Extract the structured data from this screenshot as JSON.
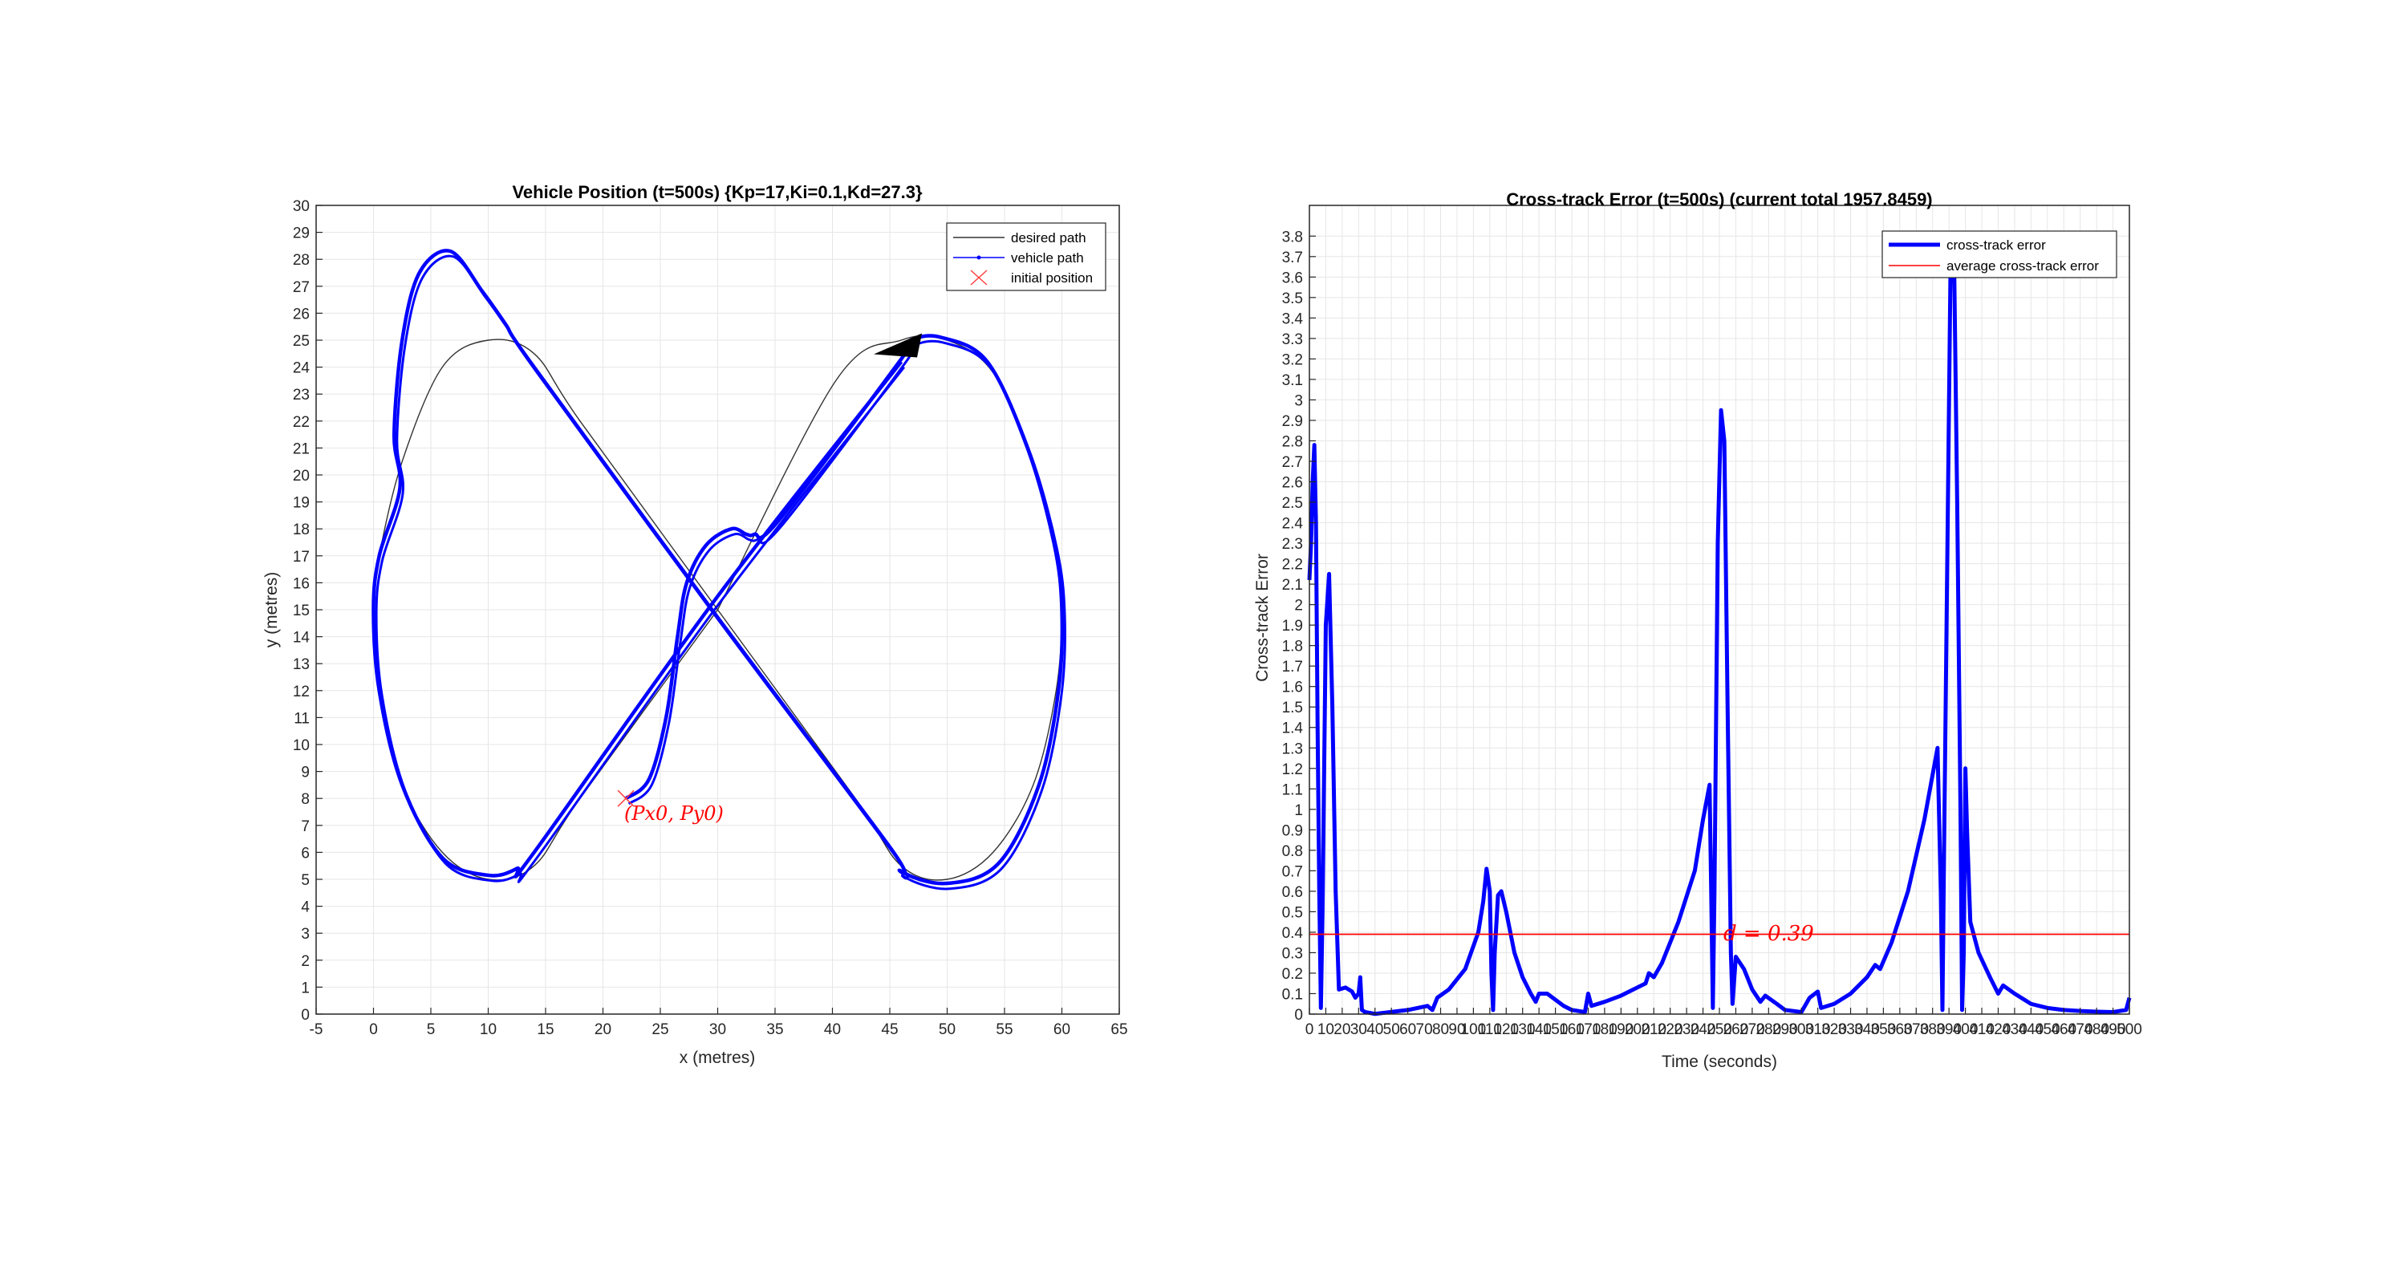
{
  "charts": [
    {
      "type": "line",
      "title": "Vehicle Position (t=500s) {Kp=17,Ki=0.1,Kd=27.3}",
      "xlabel": "x (metres)",
      "ylabel": "y (metres)",
      "xlim": [
        -5,
        65
      ],
      "ylim": [
        0,
        30
      ],
      "xticks": [
        -5,
        0,
        5,
        10,
        15,
        20,
        25,
        30,
        35,
        40,
        45,
        50,
        55,
        60,
        65
      ],
      "yticks": [
        0,
        1,
        2,
        3,
        4,
        5,
        6,
        7,
        8,
        9,
        10,
        11,
        12,
        13,
        14,
        15,
        16,
        17,
        18,
        19,
        20,
        21,
        22,
        23,
        24,
        25,
        26,
        27,
        28,
        29,
        30
      ],
      "grid": true,
      "legend": {
        "location": "top-right",
        "entries": [
          "desired path",
          "vehicle path",
          "initial position"
        ]
      },
      "annotation": "(Px0, Py0)",
      "series": [
        {
          "name": "desired path",
          "color": "#333333",
          "description": "figure-eight lemniscate centred at (30,15), left lobe x 0-30, right lobe x 30-60, y 5-25",
          "points": [
            [
              30,
              15
            ],
            [
              40.3,
              23.5
            ],
            [
              46,
              25
            ],
            [
              50,
              25
            ],
            [
              54,
              23.8
            ],
            [
              57.5,
              20.5
            ],
            [
              59.5,
              17
            ],
            [
              60,
              15
            ],
            [
              59.5,
              12
            ],
            [
              57.5,
              8.5
            ],
            [
              54,
              6
            ],
            [
              50,
              5
            ],
            [
              46,
              5.5
            ],
            [
              42,
              8
            ],
            [
              30,
              15
            ],
            [
              18,
              22
            ],
            [
              14,
              24.5
            ],
            [
              10,
              25
            ],
            [
              6,
              24
            ],
            [
              2.5,
              20.5
            ],
            [
              0.5,
              17
            ],
            [
              0,
              15
            ],
            [
              0.5,
              12
            ],
            [
              2.5,
              8.5
            ],
            [
              6,
              6
            ],
            [
              10,
              5
            ],
            [
              14,
              5.5
            ],
            [
              18,
              8
            ],
            [
              30,
              15
            ]
          ]
        },
        {
          "name": "vehicle path",
          "color": "#0000ff",
          "start": [
            22,
            8
          ],
          "points": [
            [
              22,
              8
            ],
            [
              24,
              8.7
            ],
            [
              25.5,
              11
            ],
            [
              26.5,
              14
            ],
            [
              27.3,
              16
            ],
            [
              29,
              17.4
            ],
            [
              31.2,
              18
            ],
            [
              32.5,
              17.8
            ],
            [
              33.2,
              17.8
            ],
            [
              35.3,
              18.3
            ],
            [
              46,
              24.3
            ],
            [
              46.9,
              25
            ],
            [
              49.5,
              25.1
            ],
            [
              53.5,
              24.2
            ],
            [
              57,
              21
            ],
            [
              59.3,
              17.5
            ],
            [
              60,
              15
            ],
            [
              59.7,
              12
            ],
            [
              58,
              8.5
            ],
            [
              54.5,
              5.6
            ],
            [
              50,
              4.85
            ],
            [
              46,
              5.3
            ],
            [
              45,
              6.2
            ],
            [
              29.5,
              15
            ],
            [
              14,
              24
            ],
            [
              11.5,
              25.6
            ],
            [
              9.5,
              26.8
            ],
            [
              6.7,
              28.3
            ],
            [
              4,
              27.5
            ],
            [
              2.5,
              25
            ],
            [
              1.8,
              21.5
            ],
            [
              2.3,
              19.5
            ],
            [
              0.5,
              17
            ],
            [
              0,
              15
            ],
            [
              0.5,
              12
            ],
            [
              2.5,
              8.5
            ],
            [
              6,
              5.8
            ],
            [
              10,
              5.15
            ],
            [
              12.5,
              5.4
            ],
            [
              14,
              6
            ],
            [
              30,
              15.5
            ],
            [
              46,
              24.2
            ]
          ]
        }
      ]
    },
    {
      "type": "line",
      "title": "Cross-track Error (t=500s) (current total 1957.8459)",
      "xlabel": "Time (seconds)",
      "ylabel": "Cross-track Error",
      "xlim": [
        0,
        500
      ],
      "ylim": [
        0,
        3.95
      ],
      "xticks": [
        0,
        10,
        20,
        30,
        40,
        50,
        60,
        70,
        80,
        90,
        100,
        110,
        120,
        130,
        140,
        150,
        160,
        170,
        180,
        190,
        200,
        210,
        220,
        230,
        240,
        250,
        260,
        270,
        280,
        290,
        300,
        310,
        320,
        330,
        340,
        350,
        360,
        370,
        380,
        390,
        400,
        410,
        420,
        430,
        440,
        450,
        460,
        470,
        480,
        490,
        500
      ],
      "yticks": [
        0,
        0.1,
        0.2,
        0.3,
        0.4,
        0.5,
        0.6,
        0.7,
        0.8,
        0.9,
        1,
        1.1,
        1.2,
        1.3,
        1.4,
        1.5,
        1.6,
        1.7,
        1.8,
        1.9,
        2,
        2.1,
        2.2,
        2.3,
        2.4,
        2.5,
        2.6,
        2.7,
        2.8,
        2.9,
        3,
        3.1,
        3.2,
        3.3,
        3.4,
        3.5,
        3.6,
        3.7,
        3.8
      ],
      "grid": true,
      "legend": {
        "location": "top-right",
        "entries": [
          "cross-track error",
          "average cross-track error"
        ]
      },
      "annotation": "d = 0.39",
      "average": 0.39,
      "series": [
        {
          "name": "cross-track error",
          "color": "#0000ff",
          "points": [
            [
              0,
              2.12
            ],
            [
              1,
              2.3
            ],
            [
              2,
              2.6
            ],
            [
              3,
              2.78
            ],
            [
              4,
              2.4
            ],
            [
              5,
              1.4
            ],
            [
              6,
              0.6
            ],
            [
              7,
              0.03
            ],
            [
              8,
              0.5
            ],
            [
              10,
              1.9
            ],
            [
              12,
              2.15
            ],
            [
              14,
              1.5
            ],
            [
              16,
              0.6
            ],
            [
              18,
              0.12
            ],
            [
              22,
              0.13
            ],
            [
              26,
              0.11
            ],
            [
              28,
              0.08
            ],
            [
              30,
              0.1
            ],
            [
              31,
              0.18
            ],
            [
              32,
              0.02
            ],
            [
              34,
              0.01
            ],
            [
              40,
              0.001
            ],
            [
              60,
              0.02
            ],
            [
              72,
              0.04
            ],
            [
              75,
              0.02
            ],
            [
              78,
              0.08
            ],
            [
              85,
              0.12
            ],
            [
              95,
              0.22
            ],
            [
              103,
              0.4
            ],
            [
              106,
              0.55
            ],
            [
              108,
              0.71
            ],
            [
              110,
              0.6
            ],
            [
              111,
              0.2
            ],
            [
              112,
              0.02
            ],
            [
              113,
              0.3
            ],
            [
              115,
              0.58
            ],
            [
              117,
              0.6
            ],
            [
              120,
              0.5
            ],
            [
              125,
              0.3
            ],
            [
              130,
              0.18
            ],
            [
              135,
              0.1
            ],
            [
              138,
              0.06
            ],
            [
              140,
              0.1
            ],
            [
              145,
              0.1
            ],
            [
              150,
              0.07
            ],
            [
              155,
              0.04
            ],
            [
              160,
              0.02
            ],
            [
              168,
              0.01
            ],
            [
              170,
              0.1
            ],
            [
              172,
              0.04
            ],
            [
              180,
              0.06
            ],
            [
              190,
              0.09
            ],
            [
              200,
              0.13
            ],
            [
              205,
              0.15
            ],
            [
              207,
              0.2
            ],
            [
              210,
              0.18
            ],
            [
              215,
              0.25
            ],
            [
              225,
              0.45
            ],
            [
              235,
              0.7
            ],
            [
              240,
              0.95
            ],
            [
              244,
              1.12
            ],
            [
              245,
              0.6
            ],
            [
              246,
              0.03
            ],
            [
              247,
              0.6
            ],
            [
              249,
              2.3
            ],
            [
              251,
              2.95
            ],
            [
              253,
              2.8
            ],
            [
              255,
              1.5
            ],
            [
              257,
              0.3
            ],
            [
              258,
              0.05
            ],
            [
              260,
              0.28
            ],
            [
              265,
              0.22
            ],
            [
              270,
              0.12
            ],
            [
              275,
              0.06
            ],
            [
              278,
              0.09
            ],
            [
              285,
              0.05
            ],
            [
              290,
              0.02
            ],
            [
              300,
              0.01
            ],
            [
              305,
              0.08
            ],
            [
              310,
              0.11
            ],
            [
              312,
              0.03
            ],
            [
              320,
              0.05
            ],
            [
              330,
              0.1
            ],
            [
              340,
              0.18
            ],
            [
              345,
              0.24
            ],
            [
              348,
              0.22
            ],
            [
              355,
              0.35
            ],
            [
              365,
              0.6
            ],
            [
              375,
              0.95
            ],
            [
              383,
              1.3
            ],
            [
              385,
              0.6
            ],
            [
              386,
              0.02
            ],
            [
              387,
              0.8
            ],
            [
              391,
              3.7
            ],
            [
              393,
              3.75
            ],
            [
              395,
              2.5
            ],
            [
              397,
              1.0
            ],
            [
              398,
              0.02
            ],
            [
              399,
              0.3
            ],
            [
              400,
              1.2
            ],
            [
              401,
              0.9
            ],
            [
              403,
              0.45
            ],
            [
              408,
              0.3
            ],
            [
              415,
              0.18
            ],
            [
              420,
              0.1
            ],
            [
              423,
              0.14
            ],
            [
              430,
              0.1
            ],
            [
              440,
              0.05
            ],
            [
              450,
              0.03
            ],
            [
              460,
              0.02
            ],
            [
              470,
              0.015
            ],
            [
              480,
              0.012
            ],
            [
              490,
              0.01
            ],
            [
              498,
              0.02
            ],
            [
              500,
              0.08
            ]
          ]
        }
      ]
    }
  ]
}
